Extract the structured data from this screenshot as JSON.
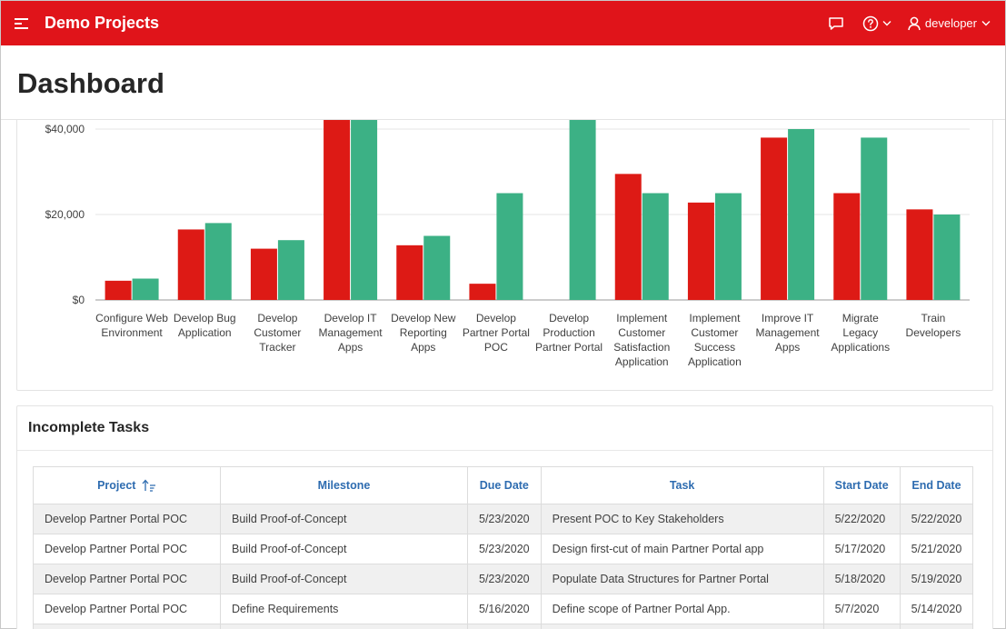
{
  "header": {
    "app_title": "Demo Projects",
    "user": "developer",
    "icons": [
      "menu-icon",
      "chat-icon",
      "help-icon",
      "user-icon",
      "chevron-down-icon"
    ]
  },
  "page": {
    "title": "Dashboard"
  },
  "colors": {
    "brand": "#e0141a",
    "budget": "#dd1a15",
    "cost": "#3cb185",
    "link": "#2e6cb0"
  },
  "chart_data": {
    "type": "bar",
    "categories": [
      "Configure Web Environment",
      "Develop Bug Application",
      "Develop Customer Tracker",
      "Develop IT Management Apps",
      "Develop New Reporting Apps",
      "Develop Partner Portal POC",
      "Develop Production Partner Portal",
      "Implement Customer Satisfaction Application",
      "Implement Customer Success Application",
      "Improve IT Management Apps",
      "Migrate Legacy Applications",
      "Train Developers"
    ],
    "category_lines": [
      [
        "Configure Web",
        "Environment"
      ],
      [
        "Develop Bug",
        "Application"
      ],
      [
        "Develop",
        "Customer",
        "Tracker"
      ],
      [
        "Develop IT",
        "Management",
        "Apps"
      ],
      [
        "Develop New",
        "Reporting",
        "Apps"
      ],
      [
        "Develop",
        "Partner Portal",
        "POC"
      ],
      [
        "Develop",
        "Production",
        "Partner Portal"
      ],
      [
        "Implement",
        "Customer",
        "Satisfaction",
        "Application"
      ],
      [
        "Implement",
        "Customer",
        "Success",
        "Application"
      ],
      [
        "Improve IT",
        "Management",
        "Apps"
      ],
      [
        "Migrate",
        "Legacy",
        "Applications"
      ],
      [
        "Train",
        "Developers"
      ]
    ],
    "series": [
      {
        "values": [
          4500,
          16500,
          12000,
          48000,
          12800,
          3800,
          0,
          29500,
          22800,
          38000,
          25000,
          21200
        ],
        "color": "#dd1a15"
      },
      {
        "values": [
          5000,
          18000,
          14000,
          45000,
          15000,
          25000,
          60000,
          25000,
          25000,
          40000,
          38000,
          20000
        ],
        "color": "#3cb185"
      }
    ],
    "yticks": [
      "$0",
      "$20,000",
      "$40,000"
    ],
    "ytick_values": [
      0,
      20000,
      40000
    ],
    "grid": true
  },
  "tasks": {
    "title": "Incomplete Tasks",
    "columns": [
      "Project",
      "Milestone",
      "Due Date",
      "Task",
      "Start Date",
      "End Date"
    ],
    "rows": [
      [
        "Develop Partner Portal POC",
        "Build Proof-of-Concept",
        "5/23/2020",
        "Present POC to Key Stakeholders",
        "5/22/2020",
        "5/22/2020"
      ],
      [
        "Develop Partner Portal POC",
        "Build Proof-of-Concept",
        "5/23/2020",
        "Design first-cut of main Partner Portal app",
        "5/17/2020",
        "5/21/2020"
      ],
      [
        "Develop Partner Portal POC",
        "Build Proof-of-Concept",
        "5/23/2020",
        "Populate Data Structures for Partner Portal",
        "5/18/2020",
        "5/19/2020"
      ],
      [
        "Develop Partner Portal POC",
        "Define Requirements",
        "5/16/2020",
        "Define scope of Partner Portal App.",
        "5/7/2020",
        "5/14/2020"
      ]
    ]
  }
}
